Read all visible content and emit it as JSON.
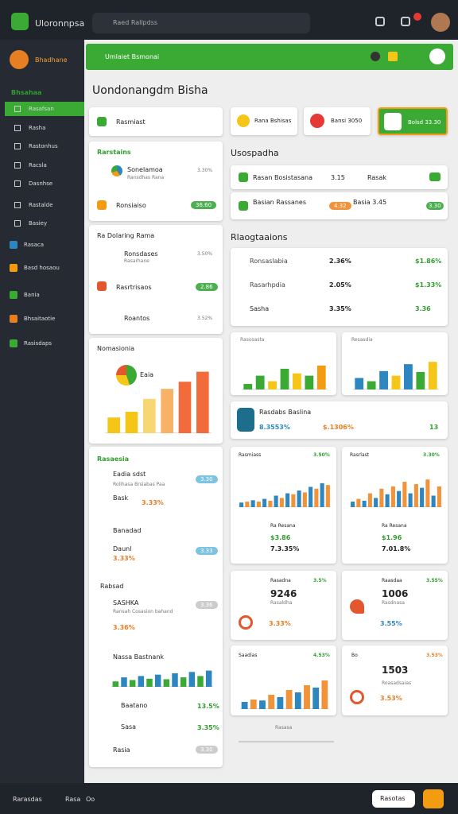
{
  "topbar": {
    "brand": "Uloronnpsa",
    "search": "Raed Rallpdss"
  },
  "sidebar": {
    "brand": "Bhadhane",
    "section": "Bhsahaa",
    "items": [
      "Rasafsan",
      "Rasha",
      "Rastonhus",
      "Racsla",
      "Dasnhse",
      "Rastalde",
      "Basiey"
    ],
    "groups": [
      "Rasaca",
      "Basd hosaou",
      "Bania",
      "Bhsaitaotie",
      "Rasisdaps"
    ]
  },
  "banner": "Umlaiet Bsmonai",
  "title": "Uondonangdm Bisha",
  "left": {
    "select": "Rasmiast",
    "b": {
      "title": "Rarstains",
      "r1": "Sonelamoa",
      "r1sub": "Ransdhas Rana",
      "r1v": "3.30%",
      "r2": "Ronsiaiso",
      "r2v": "36.60"
    },
    "c": {
      "title": "Ra Dolaring Rama",
      "r1": "Ronsdases",
      "r1sub": "Rasarhane",
      "r1v": "3.50%",
      "r2": "Rasrtrisaos",
      "r2v": "2.86",
      "r3": "Roantos",
      "r3v": "3.52%"
    },
    "d": {
      "title": "Nomasionia",
      "label": "Eaia"
    },
    "e": {
      "title": "Rasaesia",
      "r1": "Eadia sdst",
      "r1sub": "Rolihasa Brsiabas Paa",
      "r1v": "3.30",
      "r2": "Bask",
      "r2v": "3.33%",
      "r3": "Banadad",
      "r4": "Daunl",
      "r4sub": "3.33%",
      "r4v": "3.33",
      "r5": "Rabsad",
      "r6": "SASHKA",
      "r6sub": "Ransah Cosasion bahand",
      "r6v": "3.36",
      "r7": "3.36%",
      "r8": "Nassa Bastnank",
      "r9": "Baatano",
      "r9v": "13.5%",
      "r10": "Sasa",
      "r10v": "3.35%",
      "r11": "Rasia",
      "r11v": "3.30"
    }
  },
  "right": {
    "k1": "Rana Bshisas",
    "k2": "Bansi 3050",
    "k3": "Bolsd 33.30",
    "h1": "Usospadha",
    "s1": "Rasan Bosistasana",
    "s1v": "3.15",
    "s2": "Rasak",
    "s3": "Basian Rassanes",
    "s3v": "4.32",
    "s4": "Basia 3.45",
    "s4v": "3.30",
    "h2": "Rlaogtaaions",
    "t": [
      [
        "Ronsaslabia",
        "2.36%",
        "$1.86%"
      ],
      [
        "Rasarhpdia",
        "2.05%",
        "$1.33%"
      ],
      [
        "Sasha",
        "3.35%",
        "3.36"
      ]
    ],
    "ch1": "Rasosasta",
    "ch2": "Resasdia",
    "w": "Rasdabs Baslina",
    "w1": "8.3553%",
    "w2": "$.1306%",
    "w3": "13",
    "m1": "Rasmiass",
    "m1v": "3.50%",
    "m2": "Rasrlast",
    "m2v": "3.30%",
    "m1a": "Ra Resana",
    "m1b": "$3.86",
    "m1c": "7.3.35%",
    "m2a": "Ra Resana",
    "m2b": "$1.96",
    "m2c": "7.01.8%",
    "n1": "Rasadna",
    "n1v": "3.5%",
    "n1a": "9246",
    "n1b": "Rasaldha",
    "n1c": "3.33%",
    "n2": "Raasdaa",
    "n2v": "3.55%",
    "n2a": "1006",
    "n2b": "Rasdnasa",
    "n2c": "3.55%",
    "o1": "Saadias",
    "o1v": "4.53%",
    "o2": "Bo",
    "o2v": "3.53%",
    "o2a": "1503",
    "o2b": "Roasadsaias",
    "o2c": "3.53%",
    "foot": "Rasasa"
  },
  "bottombar": {
    "a": "Rarasdas",
    "b": "Rasa",
    "c": "Oo",
    "btn": "Rasotas"
  },
  "charts": [
    {
      "values": [
        22,
        30,
        48,
        62,
        72,
        86
      ],
      "colors": [
        "#f5c518",
        "#f5c518",
        "#f7d774",
        "#f7b267",
        "#f26b3a",
        "#f26b3a"
      ],
      "ylim": [
        0,
        100
      ]
    },
    {
      "values": [
        12,
        30,
        18,
        45,
        35,
        30,
        52
      ],
      "colors": [
        "#3aaa35",
        "#3aaa35",
        "#f5c518",
        "#3aaa35",
        "#f5c518",
        "#3aaa35",
        "#f39c12"
      ],
      "ylim": [
        0,
        100
      ]
    },
    {
      "values": [
        25,
        18,
        40,
        30,
        55,
        38,
        60
      ],
      "colors": [
        "#2e86c1",
        "#3aaa35",
        "#2e86c1",
        "#f5c518",
        "#2e86c1",
        "#3aaa35",
        "#f5c518"
      ],
      "ylim": [
        0,
        100
      ]
    },
    {
      "values": [
        10,
        12,
        15,
        12,
        18,
        14,
        25,
        20,
        30,
        28,
        36,
        32,
        44,
        40,
        52,
        48
      ],
      "colors": [
        "#2e86c1",
        "#f0933a"
      ],
      "ylim": [
        0,
        100
      ]
    },
    {
      "values": [
        12,
        18,
        14,
        30,
        20,
        40,
        28,
        45,
        35,
        55,
        30,
        50,
        42,
        60,
        25,
        45
      ],
      "colors": [
        "#2e86c1",
        "#f0933a"
      ],
      "ylim": [
        0,
        100
      ]
    },
    {
      "values": [
        20,
        35,
        25,
        40,
        30,
        45,
        28,
        50,
        35,
        55,
        40,
        60
      ],
      "colors": [
        "#3aaa35",
        "#2e86c1"
      ],
      "ylim": [
        0,
        100
      ]
    },
    {
      "values": [
        15,
        20,
        18,
        30,
        25,
        40,
        35,
        50,
        45,
        60
      ],
      "colors": [
        "#2e86c1",
        "#f0933a"
      ],
      "ylim": [
        0,
        100
      ]
    }
  ]
}
